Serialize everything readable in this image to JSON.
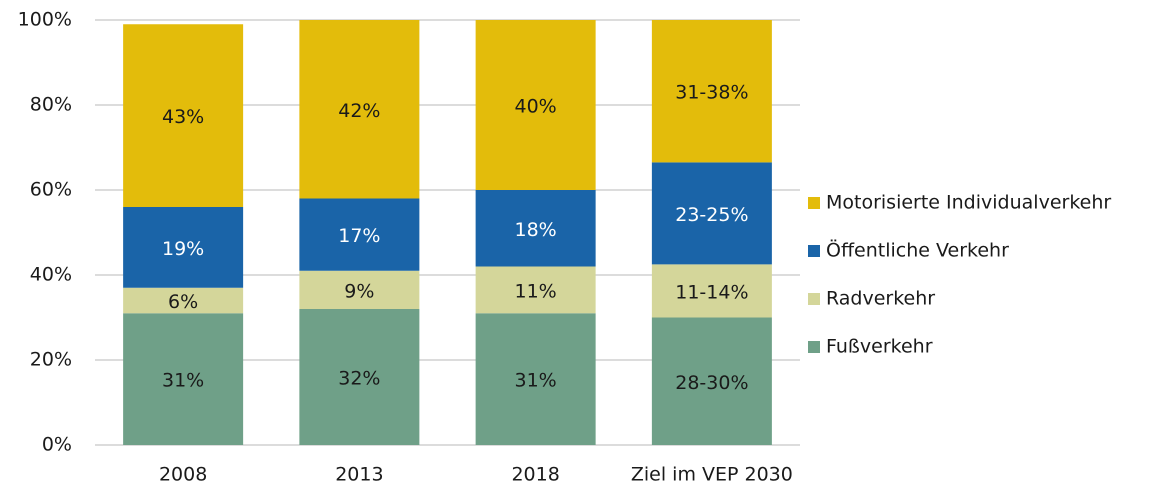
{
  "chart_data": {
    "type": "stacked_bar",
    "categories": [
      "2008",
      "2013",
      "2018",
      "Ziel im VEP 2030"
    ],
    "series": [
      {
        "name": "Fußverkehr",
        "color": "#6fa088",
        "label_color": "#1a1a1a",
        "values": [
          31,
          32,
          31,
          30
        ],
        "value_labels": [
          "31%",
          "32%",
          "31%",
          "28-30%"
        ]
      },
      {
        "name": "Radverkehr",
        "color": "#d4d69a",
        "label_color": "#1a1a1a",
        "values": [
          6,
          9,
          11,
          12.5
        ],
        "value_labels": [
          "6%",
          "9%",
          "11%",
          "11-14%"
        ]
      },
      {
        "name": "Öffentliche Verkehr",
        "color": "#1a64a8",
        "label_color": "#ffffff",
        "values": [
          19,
          17,
          18,
          24
        ],
        "value_labels": [
          "19%",
          "17%",
          "18%",
          "23-25%"
        ]
      },
      {
        "name": "Motorisierte Individualverkehr",
        "color": "#e3bc0b",
        "label_color": "#1a1a1a",
        "values": [
          43,
          42,
          40,
          33.5
        ],
        "value_labels": [
          "43%",
          "42%",
          "40%",
          "31-38%"
        ]
      }
    ],
    "ylim": [
      0,
      100
    ],
    "yticks": [
      {
        "value": 0,
        "label": "0%"
      },
      {
        "value": 20,
        "label": "20%"
      },
      {
        "value": 40,
        "label": "40%"
      },
      {
        "value": 60,
        "label": "60%"
      },
      {
        "value": 80,
        "label": "80%"
      },
      {
        "value": 100,
        "label": "100%"
      }
    ],
    "grid": true,
    "legend": "right"
  }
}
